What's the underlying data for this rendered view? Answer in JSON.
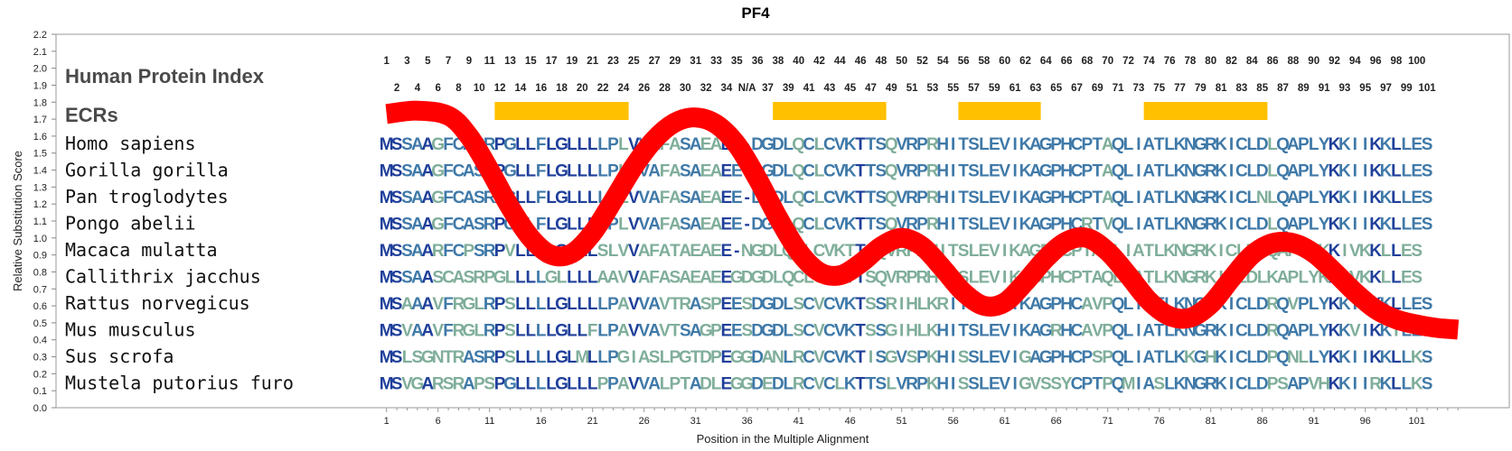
{
  "chart_data": {
    "type": "line",
    "title": "PF4",
    "xlabel": "Position in the Multiple Alignment",
    "ylabel": "Relative Substitution Score",
    "ylim": [
      0.0,
      2.2
    ],
    "xlim": [
      -2,
      105
    ],
    "y_ticks": [
      "0.0",
      "0.1",
      "0.2",
      "0.3",
      "0.4",
      "0.5",
      "0.6",
      "0.7",
      "0.8",
      "0.9",
      "1.0",
      "1.1",
      "1.2",
      "1.3",
      "1.4",
      "1.5",
      "1.6",
      "1.7",
      "1.8",
      "1.9",
      "2.0",
      "2.1",
      "2.2"
    ],
    "x_ticks": [
      "1",
      "6",
      "11",
      "16",
      "21",
      "26",
      "31",
      "36",
      "41",
      "46",
      "51",
      "56",
      "61",
      "66",
      "71",
      "76",
      "81",
      "86",
      "91",
      "96",
      "101"
    ],
    "series": [
      {
        "color": "#ff0000",
        "x": [
          0,
          3,
          6,
          8,
          10,
          12,
          14,
          16,
          18,
          20,
          22,
          24,
          26,
          28,
          30,
          32,
          34,
          36,
          38,
          40,
          42,
          44,
          46,
          48,
          50,
          52,
          54,
          56,
          58,
          60,
          62,
          64,
          66,
          68,
          70,
          72,
          74,
          76,
          78,
          80,
          82,
          84,
          86,
          88,
          90,
          92,
          94,
          96,
          98,
          100,
          102,
          104
        ],
        "y": [
          1.73,
          1.75,
          1.72,
          1.6,
          1.4,
          1.18,
          1.0,
          0.9,
          0.91,
          1.03,
          1.22,
          1.42,
          1.58,
          1.68,
          1.71,
          1.67,
          1.55,
          1.35,
          1.12,
          0.92,
          0.8,
          0.78,
          0.85,
          0.95,
          1.0,
          0.95,
          0.82,
          0.68,
          0.6,
          0.62,
          0.74,
          0.88,
          0.98,
          1.0,
          0.92,
          0.78,
          0.63,
          0.54,
          0.53,
          0.61,
          0.76,
          0.9,
          0.97,
          0.97,
          0.91,
          0.8,
          0.68,
          0.58,
          0.52,
          0.49,
          0.47,
          0.46
        ]
      }
    ],
    "human_index_top": [
      "1",
      "3",
      "5",
      "7",
      "9",
      "11",
      "13",
      "15",
      "17",
      "19",
      "21",
      "23",
      "25",
      "27",
      "29",
      "31",
      "33",
      "35",
      "36",
      "38",
      "40",
      "42",
      "44",
      "46",
      "48",
      "50",
      "52",
      "54",
      "56",
      "58",
      "60",
      "62",
      "64",
      "66",
      "68",
      "70",
      "72",
      "74",
      "76",
      "78",
      "80",
      "82",
      "84",
      "86",
      "88",
      "90",
      "92",
      "94",
      "96",
      "98",
      "100"
    ],
    "human_index_bottom": [
      "2",
      "4",
      "6",
      "8",
      "10",
      "12",
      "14",
      "16",
      "18",
      "20",
      "22",
      "24",
      "26",
      "28",
      "30",
      "32",
      "34",
      "N/A",
      "37",
      "39",
      "41",
      "43",
      "45",
      "47",
      "49",
      "51",
      "53",
      "55",
      "57",
      "59",
      "61",
      "63",
      "65",
      "67",
      "69",
      "71",
      "73",
      "75",
      "77",
      "79",
      "81",
      "83",
      "85",
      "87",
      "89",
      "91",
      "93",
      "95",
      "97",
      "99",
      "101"
    ],
    "ecrs": [
      [
        11,
        24
      ],
      [
        38,
        49
      ],
      [
        56,
        64
      ],
      [
        74,
        86
      ]
    ],
    "ecr_color": "#ffc000",
    "row_labels": {
      "index": "Human Protein Index",
      "ecrs": "ECRs"
    },
    "alignment": [
      {
        "species": "Homo sapiens",
        "seq": "MSSAAGFCASRPGLLFLGLLLLPLVVAFASAEAEE-DGDLQCLCVKTTSQVRPRHITSLEVIKAGPHCPTAQLIATLKNGRKICLDLQAPLYKKIIKKLLES"
      },
      {
        "species": "Gorilla gorilla",
        "seq": "MSSAAGFCASRPGLLFLGLLLLPLVVAFASAEAEE-DGDLQCLCVKTTSQVRPRHITSLEVIKAGPHCPTAQLIATLKNGRKICLDLQAPLYKKIIKKLLES"
      },
      {
        "species": "Pan troglodytes",
        "seq": "MSSAAGFCASRPGLLFLGLLLLPLVVAFASAEAEE-DGDLQCLCVKTTSQVRPRHITSLEVIKAGPHCPTAQLIATLKNGRKICLNLQAPLYKKIIKKLLES"
      },
      {
        "species": "Pongo abelii",
        "seq": "MSSAAGFCASRPGLLFLGLLLLPLVVAFASAEAEE-DGDLQCLCVKTTSQVRPRHITSLEVIKAGPHCRTVQLIATLKNGRKICLDLQAPLYKKIIKKLLES"
      },
      {
        "species": "Macaca mulatta",
        "seq": "MSSAARFCPSRPVLLFLGLLLSLVVAFATAEAEE-NGDLQCLCVKTTSQVRPRHITSLEVIKAGPHCPTAQLIATLKNGRKICLDLQAPLYKKIVKKLLES"
      },
      {
        "species": "Callithrix jacchus",
        "seq": "MSSAASCASRPGLLLLGLLLLAAVVAFASAEAEEGDGDLQCLCVKTTSQVRPRHITSLEVIKAGPHCPTAQLIATLKNGRKICLDLKAPLYKKIVKKLLES"
      },
      {
        "species": "Rattus norvegicus",
        "seq": "MSAAAVFRGLRPSLLLLGLLLLPAVVAVTRASPEESDGDLSCVCVKTSSRIHLKRITSLEVIKAGPHCAVPQLIATLKNGSKICLDRQVPLYKKIIKKLLES"
      },
      {
        "species": "Mus musculus",
        "seq": "MSVAAVFRGLRPSLLLLGLLFLPAVVAVTSAGPEESDGDLSCVCVKTSSGIHLKHITSLEVIKAGRHCAVPQLIATLKNGRKICLDRQAPLYKKVIKKILES"
      },
      {
        "species": "Sus scrofa",
        "seq": "MSLSGNTRASRPSLLLLGLMLLPGIASLPGTDPEGGDANLRCVCVKTISGVSPKHISSLEVIGAGPHCPSPQLIATLKKGHKICLDPQNLLYKKIIKKLLKS"
      },
      {
        "species": "Mustela putorius furo",
        "seq": "MSVGARSRAPSPGLLLLGLLLPPAVVALPTADLEGGDEDLRCVCLKTTSLVRPKHISSLEVIGVSSYCPTPQMIASLKNGRKICLDPSAPVHKKIIRKLLKS"
      }
    ],
    "residue_colors": {
      "conserved": "#1f3f9a",
      "moderate": "#3f79a8",
      "variable": "#7fae9a"
    }
  }
}
